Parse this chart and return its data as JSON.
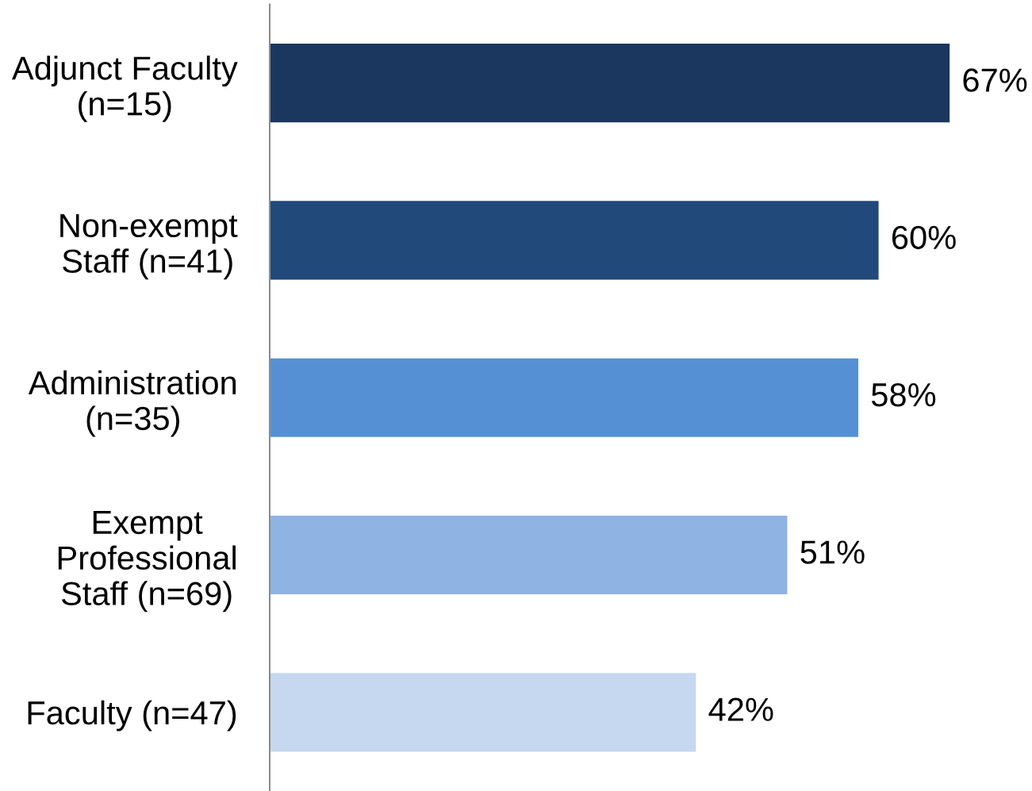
{
  "chart_data": {
    "type": "bar",
    "orientation": "horizontal",
    "categories": [
      "Adjunct Faculty\n(n=15)",
      "Non-exempt\nStaff (n=41)",
      "Administration\n(n=35)",
      "Exempt\nProfessional\nStaff (n=69)",
      "Faculty (n=47)"
    ],
    "values": [
      67,
      60,
      58,
      51,
      42
    ],
    "colors": [
      "#1b375f",
      "#21497a",
      "#5590d5",
      "#8fb3e2",
      "#c6d8f0"
    ],
    "value_labels": [
      "67%",
      "60%",
      "58%",
      "51%",
      "42%"
    ],
    "tick_labels": "y"
  }
}
